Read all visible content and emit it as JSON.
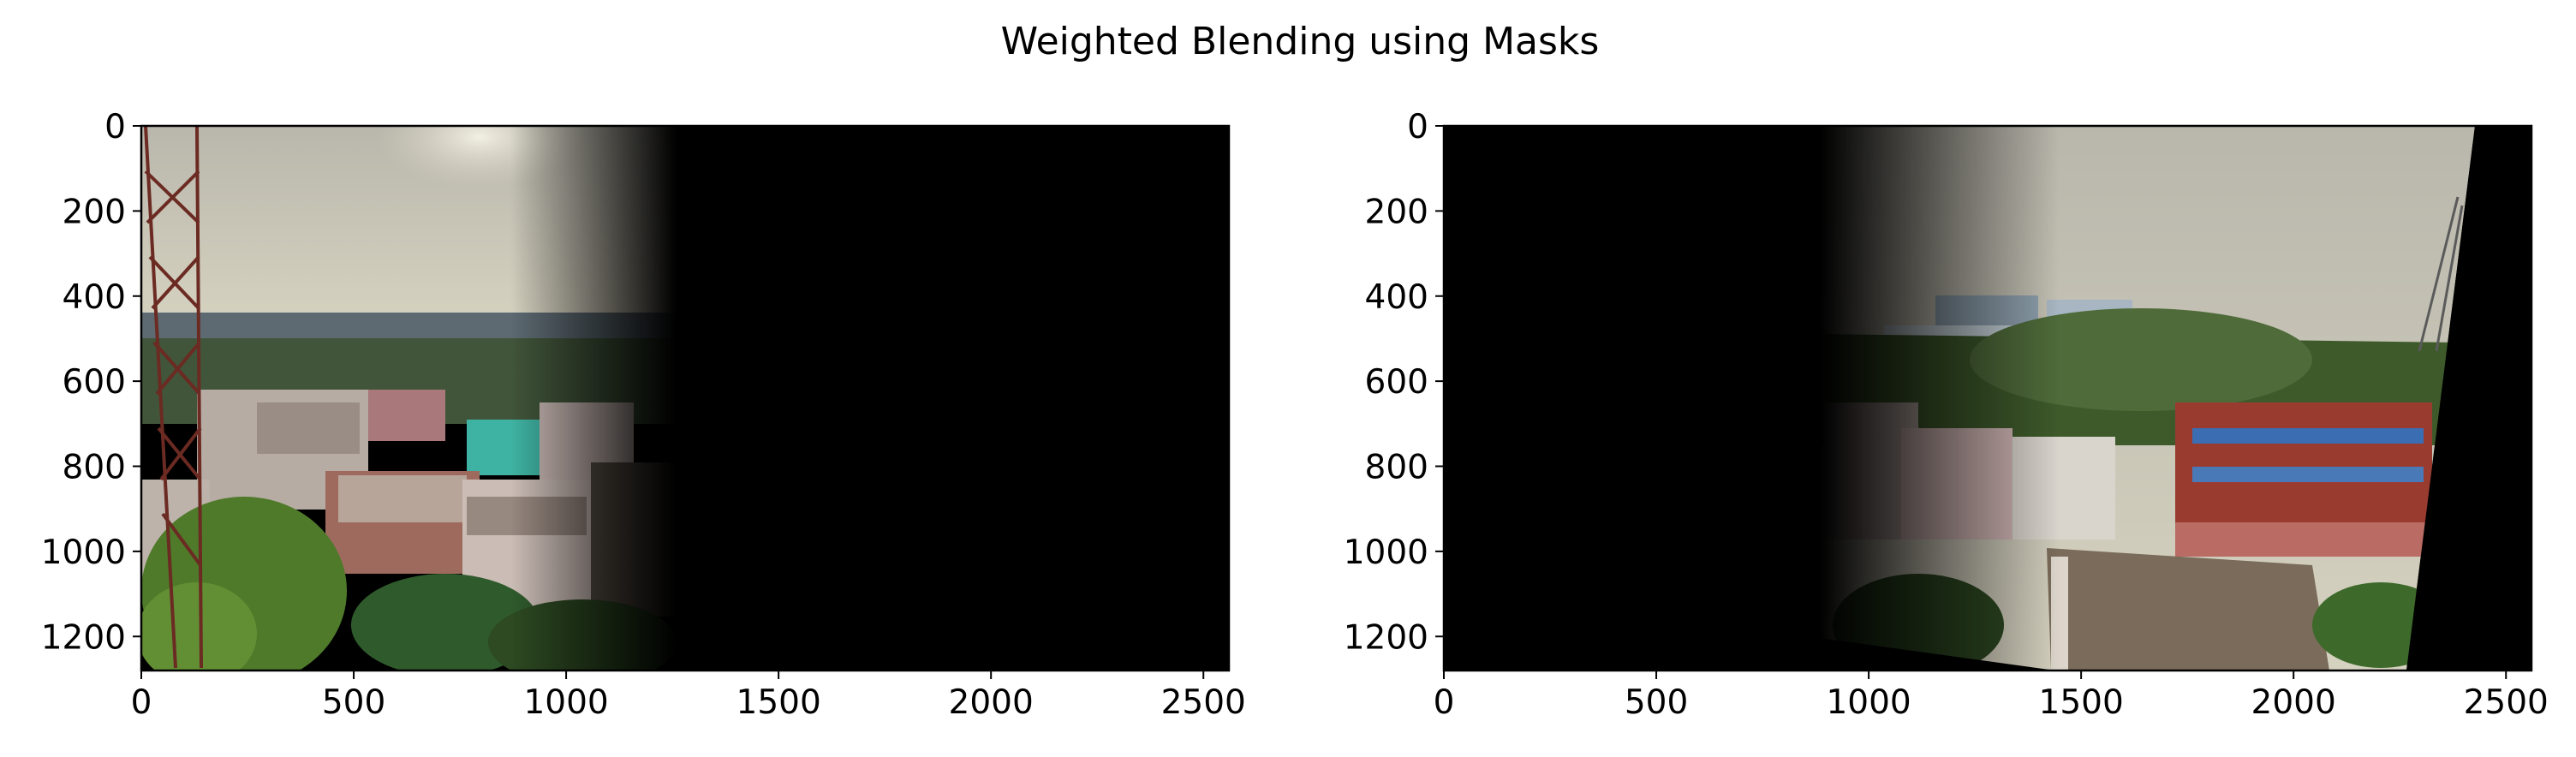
{
  "chart_data": [
    {
      "type": "image",
      "image_content": "left photo: city rooftops under hazy sky with telecom tower, fading to black",
      "title": "",
      "xlabel": "",
      "ylabel": "",
      "xlim": [
        0,
        2560
      ],
      "ylim": [
        1280,
        0
      ],
      "xticks": [
        0,
        500,
        1000,
        1500,
        2000,
        2500
      ],
      "yticks": [
        0,
        200,
        400,
        600,
        800,
        1000,
        1200
      ],
      "visible_fraction_end": 0.49,
      "fade_start_fraction": 0.34
    },
    {
      "type": "image",
      "image_content": "right photo: rooftops, trees and red building, fading from black on the left",
      "title": "",
      "xlabel": "",
      "ylabel": "",
      "xlim": [
        0,
        2560
      ],
      "ylim": [
        1280,
        0
      ],
      "xticks": [
        0,
        500,
        1000,
        1500,
        2000,
        2500
      ],
      "yticks": [
        0,
        200,
        400,
        600,
        800,
        1000,
        1200
      ],
      "fade_start_fraction": 0.34,
      "fade_end_fraction": 0.46
    }
  ],
  "figure": {
    "suptitle": "Weighted Blending using Masks"
  },
  "colors": {
    "sky": "#c9c5b3",
    "haze": "#dcd8c4",
    "building_light": "#b9b0a5",
    "building_pink": "#c9908a",
    "tree_green": "#4a6b2e",
    "red_building": "#9a3b30",
    "teal": "#3fb3a3",
    "tower": "#6b2a22",
    "black": "#000000"
  }
}
